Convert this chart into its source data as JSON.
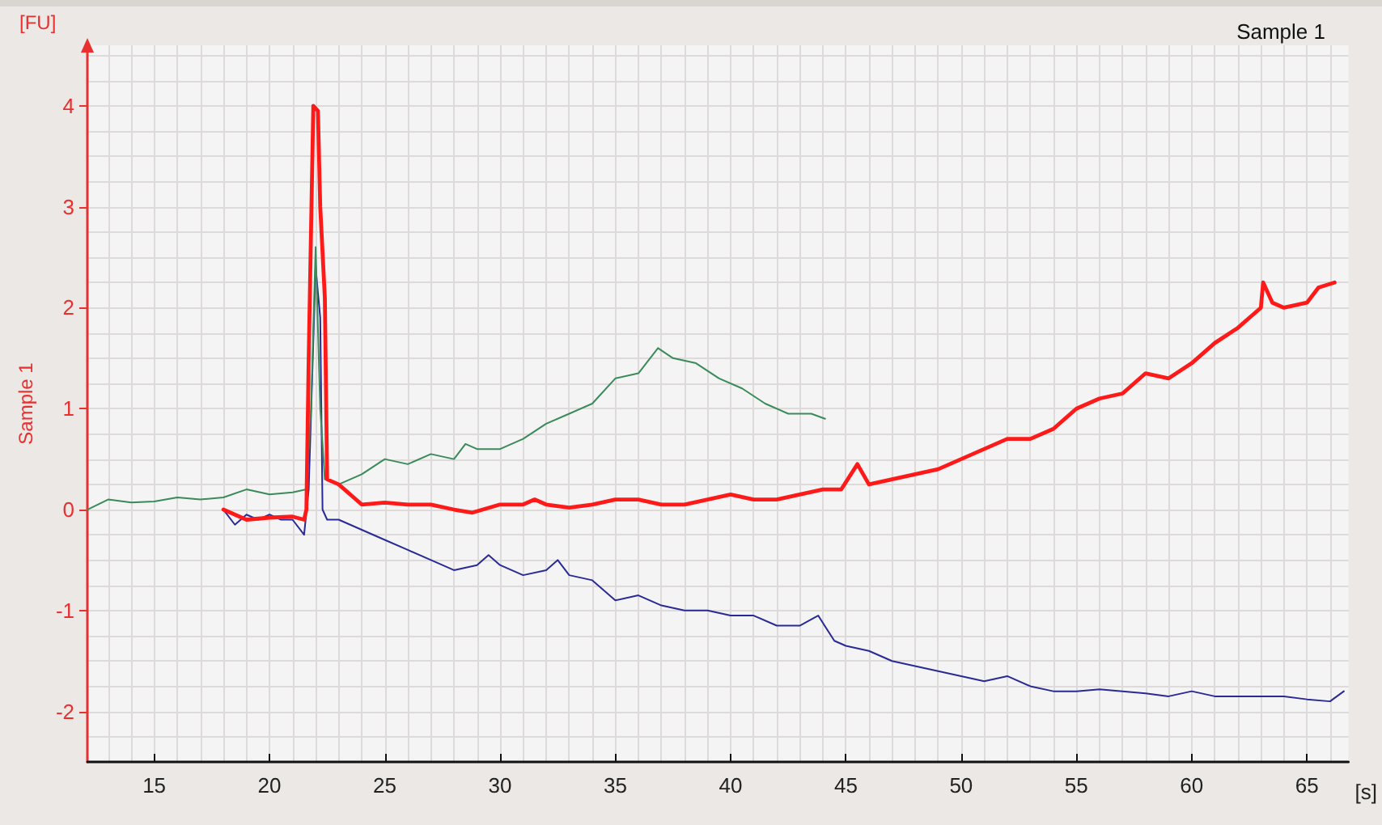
{
  "chart_data": {
    "type": "line",
    "title": "Sample 1",
    "xlabel": "[s]",
    "ylabel": "Sample 1",
    "annotations": [
      "[FU]"
    ],
    "xlim": [
      12.1,
      66.8
    ],
    "ylim": [
      -2.5,
      4.6
    ],
    "xticks": [
      15,
      20,
      25,
      30,
      35,
      40,
      45,
      50,
      55,
      60,
      65
    ],
    "yticks": [
      -2,
      -1,
      0,
      1,
      2,
      3,
      4
    ],
    "grid": true,
    "marker": "none",
    "line_style": "solid",
    "series": [
      {
        "color": "#2a2a96",
        "x": [
          18,
          18.5,
          19,
          19.5,
          20,
          20.5,
          21,
          21.5,
          21.7,
          22.0,
          22.2,
          22.3,
          22.5,
          23,
          24,
          25,
          26,
          27,
          28,
          29,
          29.5,
          30,
          31,
          32,
          32.5,
          33,
          34,
          35,
          36,
          37,
          38,
          39,
          40,
          41,
          42,
          43,
          43.8,
          44.5,
          45,
          46,
          47,
          48,
          49,
          50,
          51,
          52,
          53,
          54,
          55,
          56,
          57,
          58,
          59,
          60,
          61,
          62,
          63,
          64,
          65,
          66,
          66.6
        ],
        "values": [
          0.0,
          -0.15,
          -0.05,
          -0.1,
          -0.05,
          -0.1,
          -0.1,
          -0.25,
          0.2,
          2.4,
          1.9,
          0.0,
          -0.1,
          -0.1,
          -0.2,
          -0.3,
          -0.4,
          -0.5,
          -0.6,
          -0.55,
          -0.45,
          -0.55,
          -0.65,
          -0.6,
          -0.5,
          -0.65,
          -0.7,
          -0.9,
          -0.85,
          -0.95,
          -1.0,
          -1.0,
          -1.05,
          -1.05,
          -1.15,
          -1.15,
          -1.05,
          -1.3,
          -1.35,
          -1.4,
          -1.5,
          -1.55,
          -1.6,
          -1.65,
          -1.7,
          -1.65,
          -1.75,
          -1.8,
          -1.8,
          -1.78,
          -1.8,
          -1.82,
          -1.85,
          -1.8,
          -1.85,
          -1.85,
          -1.85,
          -1.85,
          -1.88,
          -1.9,
          -1.8
        ]
      },
      {
        "color": "#3a8a5a",
        "x": [
          12.1,
          13,
          14,
          15,
          16,
          17,
          18,
          19,
          20,
          21,
          21.6,
          21.8,
          22.0,
          22.2,
          22.4,
          23,
          24,
          25,
          26,
          27,
          28,
          28.5,
          29,
          30,
          31,
          32,
          33,
          34,
          35,
          36,
          36.85,
          37.5,
          38.5,
          39.5,
          40.5,
          41.5,
          42.5,
          43.5,
          44.1
        ],
        "values": [
          0.0,
          0.1,
          0.07,
          0.08,
          0.12,
          0.1,
          0.12,
          0.2,
          0.15,
          0.17,
          0.2,
          1.0,
          2.6,
          1.0,
          0.3,
          0.25,
          0.35,
          0.5,
          0.45,
          0.55,
          0.5,
          0.65,
          0.6,
          0.6,
          0.7,
          0.85,
          0.95,
          1.05,
          1.3,
          1.35,
          1.6,
          1.5,
          1.45,
          1.3,
          1.2,
          1.05,
          0.95,
          0.95,
          0.9
        ]
      },
      {
        "color": "#ff1a1a",
        "x": [
          18,
          18.5,
          19,
          20,
          21,
          21.5,
          21.6,
          21.7,
          21.9,
          22.1,
          22.2,
          22.4,
          22.5,
          23,
          24,
          25,
          26,
          27,
          28,
          28.8,
          30,
          31,
          31.5,
          32,
          33,
          34,
          35,
          36,
          37,
          38,
          39,
          40,
          41,
          42,
          43,
          44,
          44.8,
          45.5,
          46,
          47,
          48,
          49,
          50,
          51,
          52,
          53,
          54,
          55,
          56,
          57,
          58,
          59,
          60,
          61,
          62,
          63,
          63.1,
          63.5,
          64,
          65,
          65.5,
          66.2
        ],
        "values": [
          0.0,
          -0.05,
          -0.1,
          -0.08,
          -0.07,
          -0.1,
          0.0,
          1.5,
          4.0,
          3.95,
          3.0,
          2.1,
          0.3,
          0.25,
          0.05,
          0.07,
          0.05,
          0.05,
          0.0,
          -0.03,
          0.05,
          0.05,
          0.1,
          0.05,
          0.02,
          0.05,
          0.1,
          0.1,
          0.05,
          0.05,
          0.1,
          0.15,
          0.1,
          0.1,
          0.15,
          0.2,
          0.2,
          0.45,
          0.25,
          0.3,
          0.35,
          0.4,
          0.5,
          0.6,
          0.7,
          0.7,
          0.8,
          1.0,
          1.1,
          1.15,
          1.35,
          1.3,
          1.45,
          1.65,
          1.8,
          2.0,
          2.25,
          2.05,
          2.0,
          2.05,
          2.2,
          2.25
        ]
      }
    ]
  }
}
